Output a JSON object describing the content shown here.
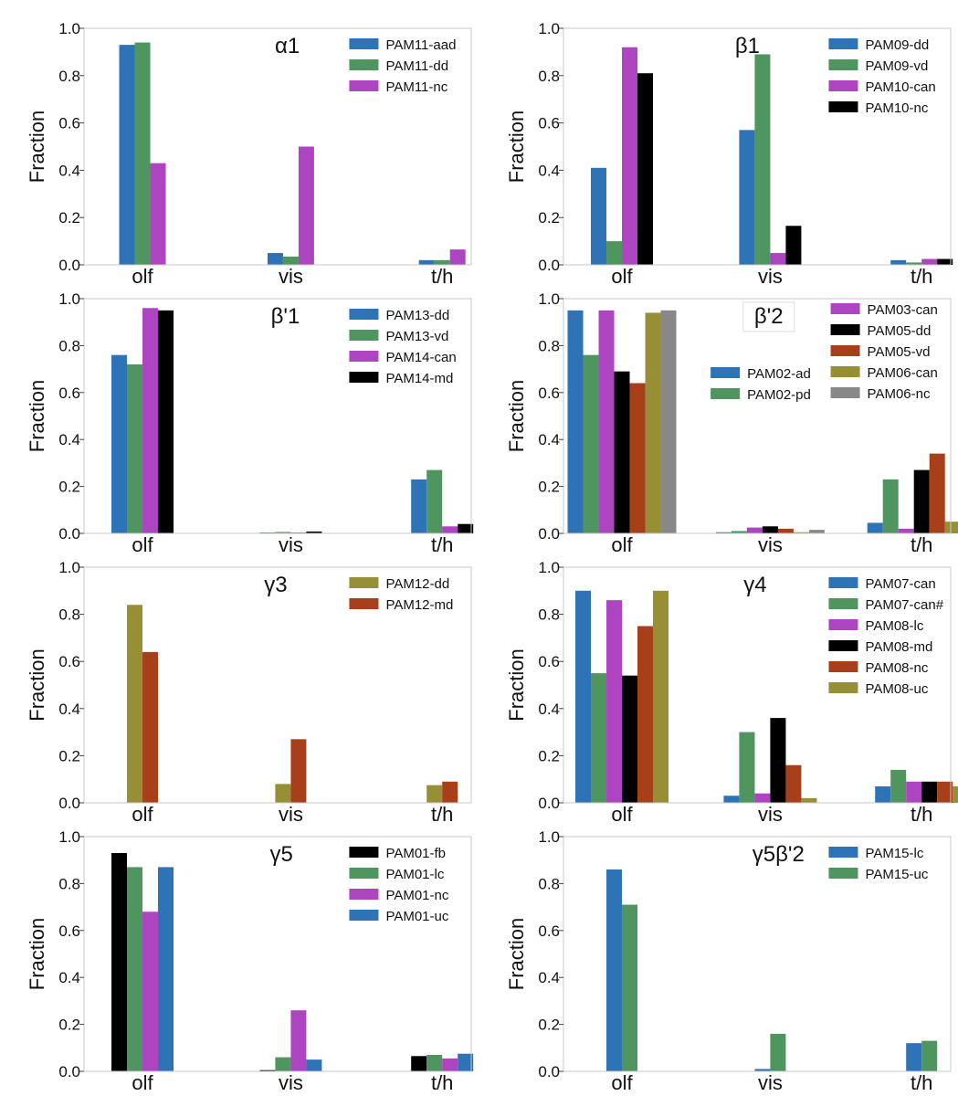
{
  "chart_data": [
    {
      "type": "bar",
      "title": "α1",
      "ylabel": "Fraction",
      "ylim": [
        0,
        1.0
      ],
      "yticks": [
        "0.0",
        "0.2",
        "0.4",
        "0.6",
        "0.8",
        "1.0"
      ],
      "categories": [
        "olf",
        "vis",
        "t/h"
      ],
      "legend_position": "top-right",
      "series": [
        {
          "name": "PAM11-aad",
          "color": "#2e73b5",
          "values": [
            0.93,
            0.05,
            0.02
          ]
        },
        {
          "name": "PAM11-dd",
          "color": "#4f9560",
          "values": [
            0.94,
            0.035,
            0.02
          ]
        },
        {
          "name": "PAM11-nc",
          "color": "#ae45c0",
          "values": [
            0.43,
            0.5,
            0.065
          ]
        }
      ]
    },
    {
      "type": "bar",
      "title": "β1",
      "ylabel": "Fraction",
      "ylim": [
        0,
        1.0
      ],
      "yticks": [
        "0.0",
        "0.2",
        "0.4",
        "0.6",
        "0.8",
        "1.0"
      ],
      "categories": [
        "olf",
        "vis",
        "t/h"
      ],
      "legend_position": "top-right",
      "series": [
        {
          "name": "PAM09-dd",
          "color": "#2e73b5",
          "values": [
            0.41,
            0.57,
            0.02
          ]
        },
        {
          "name": "PAM09-vd",
          "color": "#4f9560",
          "values": [
            0.1,
            0.89,
            0.01
          ]
        },
        {
          "name": "PAM10-can",
          "color": "#ae45c0",
          "values": [
            0.92,
            0.05,
            0.025
          ]
        },
        {
          "name": "PAM10-nc",
          "color": "#000000",
          "values": [
            0.81,
            0.165,
            0.025
          ]
        }
      ]
    },
    {
      "type": "bar",
      "title": "β'1",
      "ylabel": "Fraction",
      "ylim": [
        0,
        1.0
      ],
      "yticks": [
        "0.0",
        "0.2",
        "0.4",
        "0.6",
        "0.8",
        "1.0"
      ],
      "categories": [
        "olf",
        "vis",
        "t/h"
      ],
      "legend_position": "top-right",
      "series": [
        {
          "name": "PAM13-dd",
          "color": "#2e73b5",
          "values": [
            0.76,
            0.004,
            0.23
          ]
        },
        {
          "name": "PAM13-vd",
          "color": "#4f9560",
          "values": [
            0.72,
            0.006,
            0.27
          ]
        },
        {
          "name": "PAM14-can",
          "color": "#ae45c0",
          "values": [
            0.96,
            0.004,
            0.03
          ]
        },
        {
          "name": "PAM14-md",
          "color": "#000000",
          "values": [
            0.95,
            0.008,
            0.04
          ]
        }
      ]
    },
    {
      "type": "bar",
      "title": "β'2",
      "ylabel": "Fraction",
      "ylim": [
        0,
        1.0
      ],
      "yticks": [
        "0.0",
        "0.2",
        "0.4",
        "0.6",
        "0.8",
        "1.0"
      ],
      "categories": [
        "olf",
        "vis",
        "t/h"
      ],
      "legend_position": "top-right, two columns",
      "series": [
        {
          "name": "PAM02-ad",
          "color": "#2e73b5",
          "values": [
            0.95,
            0.005,
            0.045
          ]
        },
        {
          "name": "PAM02-pd",
          "color": "#4f9560",
          "values": [
            0.76,
            0.01,
            0.23
          ]
        },
        {
          "name": "PAM03-can",
          "color": "#ae45c0",
          "values": [
            0.95,
            0.025,
            0.02
          ]
        },
        {
          "name": "PAM05-dd",
          "color": "#000000",
          "values": [
            0.69,
            0.03,
            0.27
          ]
        },
        {
          "name": "PAM05-vd",
          "color": "#a7401a",
          "values": [
            0.64,
            0.02,
            0.34
          ]
        },
        {
          "name": "PAM06-can",
          "color": "#978f35",
          "values": [
            0.94,
            0.005,
            0.05
          ]
        },
        {
          "name": "PAM06-nc",
          "color": "#888888",
          "values": [
            0.95,
            0.015,
            0.035
          ]
        }
      ]
    },
    {
      "type": "bar",
      "title": "γ3",
      "ylabel": "Fraction",
      "ylim": [
        0,
        1.0
      ],
      "yticks": [
        "0.0",
        "0.2",
        "0.4",
        "0.6",
        "0.8",
        "1.0"
      ],
      "categories": [
        "olf",
        "vis",
        "t/h"
      ],
      "legend_position": "top-right",
      "series": [
        {
          "name": "PAM12-dd",
          "color": "#978f35",
          "values": [
            0.84,
            0.08,
            0.075
          ]
        },
        {
          "name": "PAM12-md",
          "color": "#a7401a",
          "values": [
            0.64,
            0.27,
            0.09
          ]
        }
      ]
    },
    {
      "type": "bar",
      "title": "γ4",
      "ylabel": "Fraction",
      "ylim": [
        0,
        1.0
      ],
      "yticks": [
        "0.0",
        "0.2",
        "0.4",
        "0.6",
        "0.8",
        "1.0"
      ],
      "categories": [
        "olf",
        "vis",
        "t/h"
      ],
      "legend_position": "top-right",
      "series": [
        {
          "name": "PAM07-can",
          "color": "#2e73b5",
          "values": [
            0.9,
            0.03,
            0.07
          ]
        },
        {
          "name": "PAM07-can#",
          "color": "#4f9560",
          "values": [
            0.55,
            0.3,
            0.14
          ]
        },
        {
          "name": "PAM08-lc",
          "color": "#ae45c0",
          "values": [
            0.86,
            0.04,
            0.09
          ]
        },
        {
          "name": "PAM08-md",
          "color": "#000000",
          "values": [
            0.54,
            0.36,
            0.09
          ]
        },
        {
          "name": "PAM08-nc",
          "color": "#a7401a",
          "values": [
            0.75,
            0.16,
            0.09
          ]
        },
        {
          "name": "PAM08-uc",
          "color": "#978f35",
          "values": [
            0.9,
            0.02,
            0.07
          ]
        }
      ]
    },
    {
      "type": "bar",
      "title": "γ5",
      "ylabel": "Fraction",
      "ylim": [
        0,
        1.0
      ],
      "yticks": [
        "0.0",
        "0.2",
        "0.4",
        "0.6",
        "0.8",
        "1.0"
      ],
      "categories": [
        "olf",
        "vis",
        "t/h"
      ],
      "legend_position": "top-right",
      "series": [
        {
          "name": "PAM01-fb",
          "color": "#000000",
          "values": [
            0.93,
            0.005,
            0.065
          ]
        },
        {
          "name": "PAM01-lc",
          "color": "#4f9560",
          "values": [
            0.87,
            0.06,
            0.07
          ]
        },
        {
          "name": "PAM01-nc",
          "color": "#ae45c0",
          "values": [
            0.68,
            0.26,
            0.055
          ]
        },
        {
          "name": "PAM01-uc",
          "color": "#2e73b5",
          "values": [
            0.87,
            0.05,
            0.075
          ]
        }
      ]
    },
    {
      "type": "bar",
      "title": "γ5β'2",
      "ylabel": "Fraction",
      "ylim": [
        0,
        1.0
      ],
      "yticks": [
        "0.0",
        "0.2",
        "0.4",
        "0.6",
        "0.8",
        "1.0"
      ],
      "categories": [
        "olf",
        "vis",
        "t/h"
      ],
      "legend_position": "top-right",
      "series": [
        {
          "name": "PAM15-lc",
          "color": "#2e73b5",
          "values": [
            0.86,
            0.01,
            0.12
          ]
        },
        {
          "name": "PAM15-uc",
          "color": "#4f9560",
          "values": [
            0.71,
            0.16,
            0.13
          ]
        }
      ]
    }
  ]
}
